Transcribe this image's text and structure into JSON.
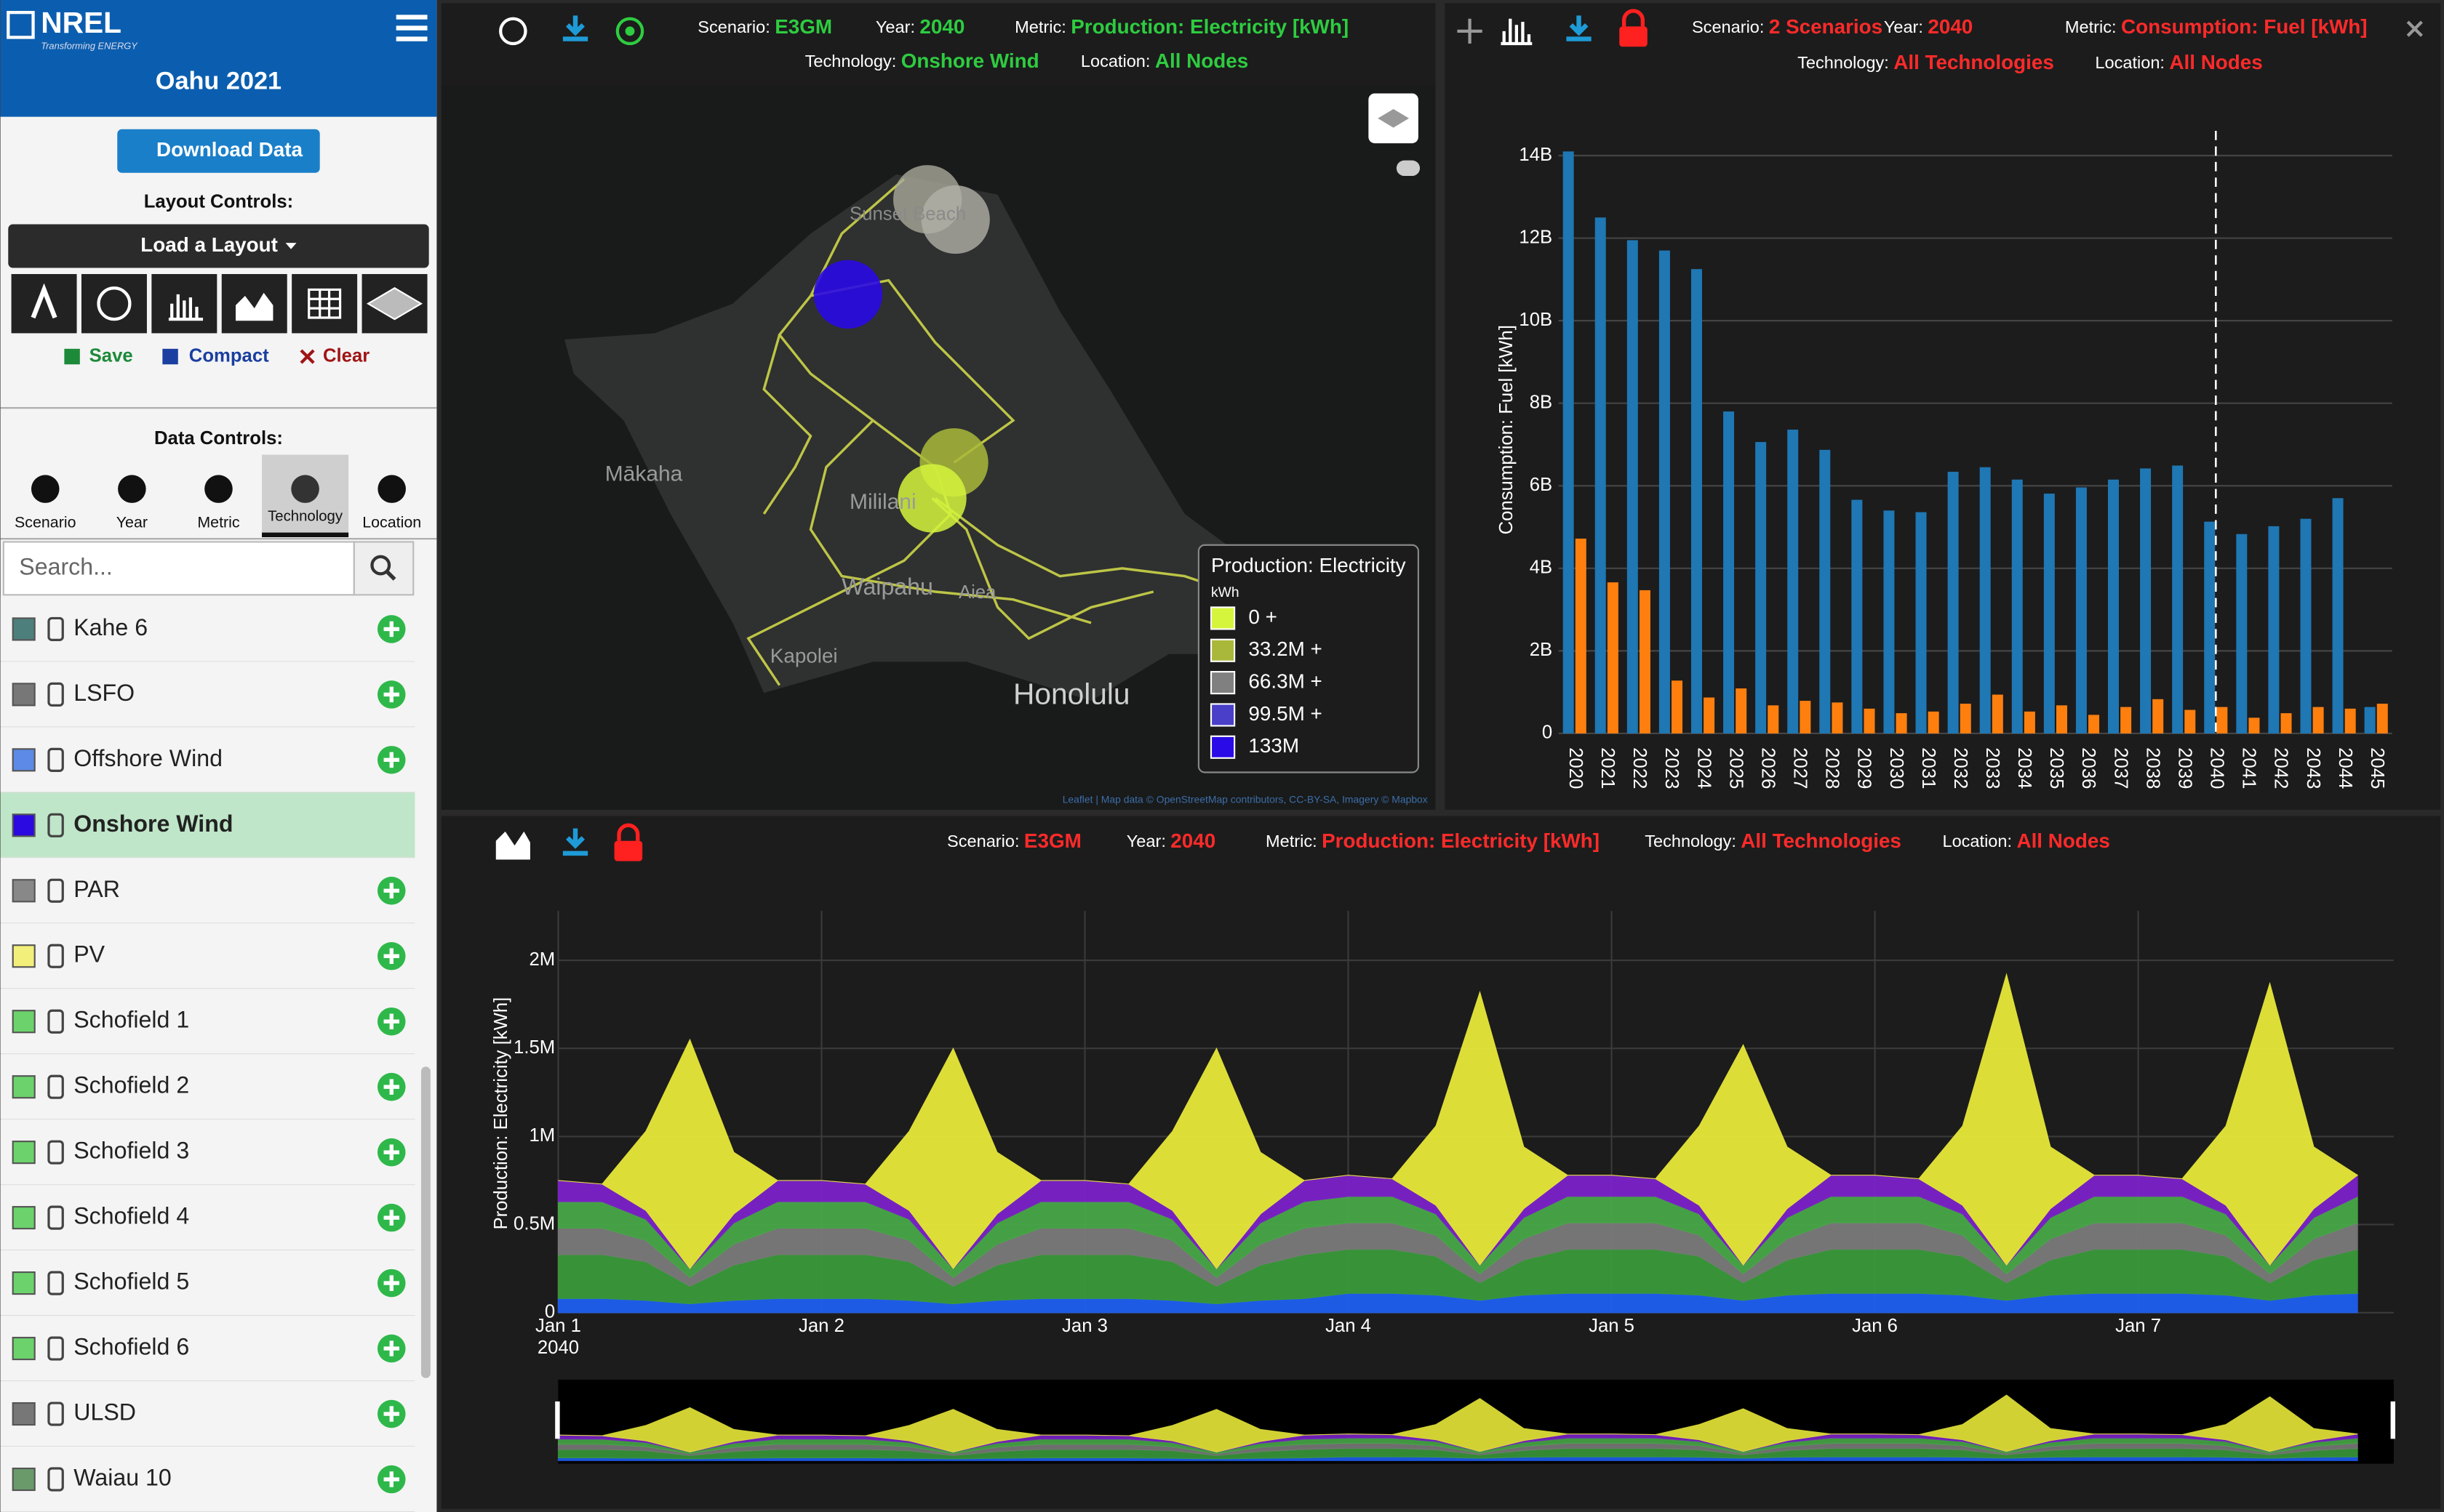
{
  "app": {
    "logo": "NREL",
    "logo_sub": "Transforming ENERGY",
    "title": "Oahu 2021"
  },
  "sidebar": {
    "download": "Download Data",
    "layout_controls": "Layout Controls:",
    "load_layout": "Load a Layout",
    "save": "Save",
    "compact": "Compact",
    "clear": "Clear",
    "data_controls": "Data Controls:",
    "tabs": [
      {
        "label": "Scenario",
        "active": false
      },
      {
        "label": "Year",
        "active": false
      },
      {
        "label": "Metric",
        "active": false
      },
      {
        "label": "Technology",
        "active": true
      },
      {
        "label": "Location",
        "active": false
      }
    ],
    "search_placeholder": "Search...",
    "technologies": [
      {
        "name": "Kahe 6",
        "color": "#4d7f7c",
        "selected": false
      },
      {
        "name": "LSFO",
        "color": "#777777",
        "selected": false
      },
      {
        "name": "Offshore Wind",
        "color": "#5c8ae6",
        "selected": false
      },
      {
        "name": "Onshore Wind",
        "color": "#2a0ae0",
        "selected": true
      },
      {
        "name": "PAR",
        "color": "#888888",
        "selected": false
      },
      {
        "name": "PV",
        "color": "#f2f07a",
        "selected": false
      },
      {
        "name": "Schofield 1",
        "color": "#6cd36c",
        "selected": false
      },
      {
        "name": "Schofield 2",
        "color": "#6cd36c",
        "selected": false
      },
      {
        "name": "Schofield 3",
        "color": "#6cd36c",
        "selected": false
      },
      {
        "name": "Schofield 4",
        "color": "#6cd36c",
        "selected": false
      },
      {
        "name": "Schofield 5",
        "color": "#6cd36c",
        "selected": false
      },
      {
        "name": "Schofield 6",
        "color": "#6cd36c",
        "selected": false
      },
      {
        "name": "ULSD",
        "color": "#777777",
        "selected": false
      },
      {
        "name": "Waiau 10",
        "color": "#6a9a6a",
        "selected": false
      }
    ]
  },
  "map_panel": {
    "scenario_label": "Scenario:",
    "scenario": "E3GM",
    "year_label": "Year:",
    "year": "2040",
    "metric_label": "Metric:",
    "metric": "Production: Electricity [kWh]",
    "technology_label": "Technology:",
    "technology": "Onshore Wind",
    "location_label": "Location:",
    "location": "All Nodes",
    "value_color": "#2ecc40",
    "places": [
      "Sunset Beach",
      "Mākaha",
      "Mililani",
      "Waipahu",
      "Aiea",
      "Kapolei",
      "Honolulu"
    ],
    "legend": {
      "title": "Production: Electricity",
      "unit": "kWh",
      "bins": [
        {
          "label": "0 +",
          "color": "#d4f53c"
        },
        {
          "label": "33.2M +",
          "color": "#a9b83a"
        },
        {
          "label": "66.3M +",
          "color": "#808080"
        },
        {
          "label": "99.5M +",
          "color": "#4a3fc8"
        },
        {
          "label": "133M",
          "color": "#2a0ae6"
        }
      ]
    },
    "attribution": "Leaflet | Map data © OpenStreetMap contributors, CC-BY-SA, Imagery © Mapbox"
  },
  "bar_panel": {
    "scenario_label": "Scenario:",
    "scenario": "2 Scenarios",
    "year_label": "Year:",
    "year": "2040",
    "metric_label": "Metric:",
    "metric": "Consumption: Fuel [kWh]",
    "technology_label": "Technology:",
    "technology": "All Technologies",
    "location_label": "Location:",
    "location": "All Nodes",
    "value_color": "#ff2a2a",
    "chart": {
      "type": "bar",
      "y_label": "Consumption: Fuel [kWh]",
      "categories": [
        "2020",
        "2021",
        "2022",
        "2023",
        "2024",
        "2025",
        "2026",
        "2027",
        "2028",
        "2029",
        "2030",
        "2031",
        "2032",
        "2033",
        "2034",
        "2035",
        "2036",
        "2037",
        "2038",
        "2039",
        "2040",
        "2041",
        "2042",
        "2043",
        "2044",
        "2045"
      ],
      "series": [
        {
          "color": "#1f77b4",
          "values": [
            14100000000,
            12500000000,
            11950000000,
            11700000000,
            11250000000,
            7800000000,
            7060000000,
            7360000000,
            6870000000,
            5660000000,
            5400000000,
            5360000000,
            6340000000,
            6450000000,
            6150000000,
            5810000000,
            5960000000,
            6150000000,
            6420000000,
            6490000000,
            5130000000,
            4830000000,
            5020000000,
            5200000000,
            5700000000,
            640000000
          ]
        },
        {
          "color": "#ff7f0e",
          "values": [
            4720000000,
            3660000000,
            3470000000,
            1280000000,
            870000000,
            1090000000,
            680000000,
            790000000,
            750000000,
            600000000,
            490000000,
            530000000,
            720000000,
            940000000,
            530000000,
            680000000,
            450000000,
            640000000,
            830000000,
            570000000,
            640000000,
            380000000,
            490000000,
            640000000,
            600000000,
            720000000
          ]
        }
      ],
      "ylim": [
        0,
        14600000000
      ],
      "yticks": [
        0,
        {
          "value": 2000000000,
          "label": "2B"
        },
        {
          "value": 4000000000,
          "label": "4B"
        },
        {
          "value": 6000000000,
          "label": "6B"
        },
        {
          "value": 8000000000,
          "label": "8B"
        },
        {
          "value": 10000000000,
          "label": "10B"
        },
        {
          "value": 12000000000,
          "label": "12B"
        },
        {
          "value": 14000000000,
          "label": "14B"
        }
      ],
      "grid": true
    }
  },
  "area_panel": {
    "scenario_label": "Scenario:",
    "scenario": "E3GM",
    "year_label": "Year:",
    "year": "2040",
    "metric_label": "Metric:",
    "metric": "Production: Electricity [kWh]",
    "technology_label": "Technology:",
    "technology": "All Technologies",
    "location_label": "Location:",
    "location": "All Nodes",
    "value_color": "#ff2a2a",
    "chart": {
      "type": "area",
      "stacked": true,
      "y_label": "Production: Electricity [kWh]",
      "x": [
        0,
        4,
        8,
        12,
        16,
        20,
        24,
        28,
        32,
        36,
        40,
        44,
        48,
        52,
        56,
        60,
        64,
        68,
        72,
        76,
        80,
        84,
        88,
        92,
        96,
        100,
        104,
        108,
        112,
        116,
        120,
        124,
        128,
        132,
        136,
        140,
        144,
        148,
        152,
        156,
        160,
        164
      ],
      "xlim": [
        0,
        167
      ],
      "xticks": [
        {
          "value": 0,
          "label": "Jan 1",
          "sublabel": "2040"
        },
        {
          "value": 24,
          "label": "Jan 2"
        },
        {
          "value": 48,
          "label": "Jan 3"
        },
        {
          "value": 72,
          "label": "Jan 4"
        },
        {
          "value": 96,
          "label": "Jan 5"
        },
        {
          "value": 120,
          "label": "Jan 6"
        },
        {
          "value": 144,
          "label": "Jan 7"
        }
      ],
      "ylim": [
        0,
        2280000
      ],
      "yticks": [
        0,
        {
          "value": 500000,
          "label": "0.5M"
        },
        {
          "value": 1000000,
          "label": "1M"
        },
        {
          "value": 1500000,
          "label": "1.5M"
        },
        {
          "value": 2000000,
          "label": "2M"
        }
      ],
      "grid": true,
      "series": [
        {
          "color": "#1f5ff0",
          "values": [
            80000,
            80000,
            70000,
            50000,
            70000,
            80000,
            80000,
            80000,
            70000,
            50000,
            70000,
            80000,
            80000,
            80000,
            70000,
            50000,
            70000,
            80000,
            110000,
            110000,
            100000,
            70000,
            100000,
            110000,
            110000,
            110000,
            100000,
            70000,
            100000,
            110000,
            110000,
            110000,
            100000,
            70000,
            100000,
            110000,
            110000,
            110000,
            100000,
            70000,
            100000,
            110000
          ]
        },
        {
          "color": "#3a9a3a",
          "values": [
            250000,
            250000,
            220000,
            100000,
            200000,
            250000,
            250000,
            250000,
            220000,
            100000,
            200000,
            250000,
            250000,
            250000,
            220000,
            100000,
            200000,
            250000,
            250000,
            250000,
            220000,
            100000,
            200000,
            250000,
            250000,
            250000,
            220000,
            100000,
            200000,
            250000,
            250000,
            250000,
            220000,
            100000,
            200000,
            250000,
            250000,
            250000,
            220000,
            100000,
            200000,
            250000
          ]
        },
        {
          "color": "#7a7a7a",
          "values": [
            150000,
            150000,
            120000,
            50000,
            120000,
            150000,
            150000,
            150000,
            120000,
            50000,
            120000,
            150000,
            150000,
            150000,
            120000,
            50000,
            120000,
            150000,
            150000,
            150000,
            120000,
            50000,
            120000,
            150000,
            150000,
            150000,
            120000,
            50000,
            120000,
            150000,
            150000,
            150000,
            120000,
            50000,
            120000,
            150000,
            150000,
            150000,
            120000,
            50000,
            120000,
            150000
          ]
        },
        {
          "color": "#48a848",
          "values": [
            150000,
            150000,
            120000,
            50000,
            120000,
            150000,
            150000,
            150000,
            120000,
            50000,
            120000,
            150000,
            150000,
            150000,
            120000,
            50000,
            120000,
            150000,
            150000,
            150000,
            120000,
            50000,
            120000,
            150000,
            150000,
            150000,
            120000,
            50000,
            120000,
            150000,
            150000,
            150000,
            120000,
            50000,
            120000,
            150000,
            150000,
            150000,
            120000,
            50000,
            120000,
            150000
          ]
        },
        {
          "color": "#7b22c8",
          "values": [
            120000,
            100000,
            50000,
            0,
            50000,
            120000,
            120000,
            100000,
            50000,
            0,
            50000,
            120000,
            120000,
            100000,
            50000,
            0,
            50000,
            120000,
            120000,
            100000,
            50000,
            0,
            50000,
            120000,
            120000,
            100000,
            50000,
            0,
            50000,
            120000,
            120000,
            100000,
            50000,
            0,
            50000,
            120000,
            120000,
            100000,
            50000,
            0,
            50000,
            120000
          ]
        },
        {
          "color": "#e8e83a",
          "values": [
            0,
            0,
            450000,
            1300000,
            350000,
            0,
            0,
            0,
            450000,
            1250000,
            350000,
            0,
            0,
            0,
            450000,
            1250000,
            350000,
            0,
            0,
            0,
            450000,
            1550000,
            350000,
            0,
            0,
            0,
            450000,
            1250000,
            350000,
            0,
            0,
            0,
            450000,
            1650000,
            350000,
            0,
            0,
            0,
            450000,
            1600000,
            350000,
            0
          ]
        }
      ]
    }
  }
}
